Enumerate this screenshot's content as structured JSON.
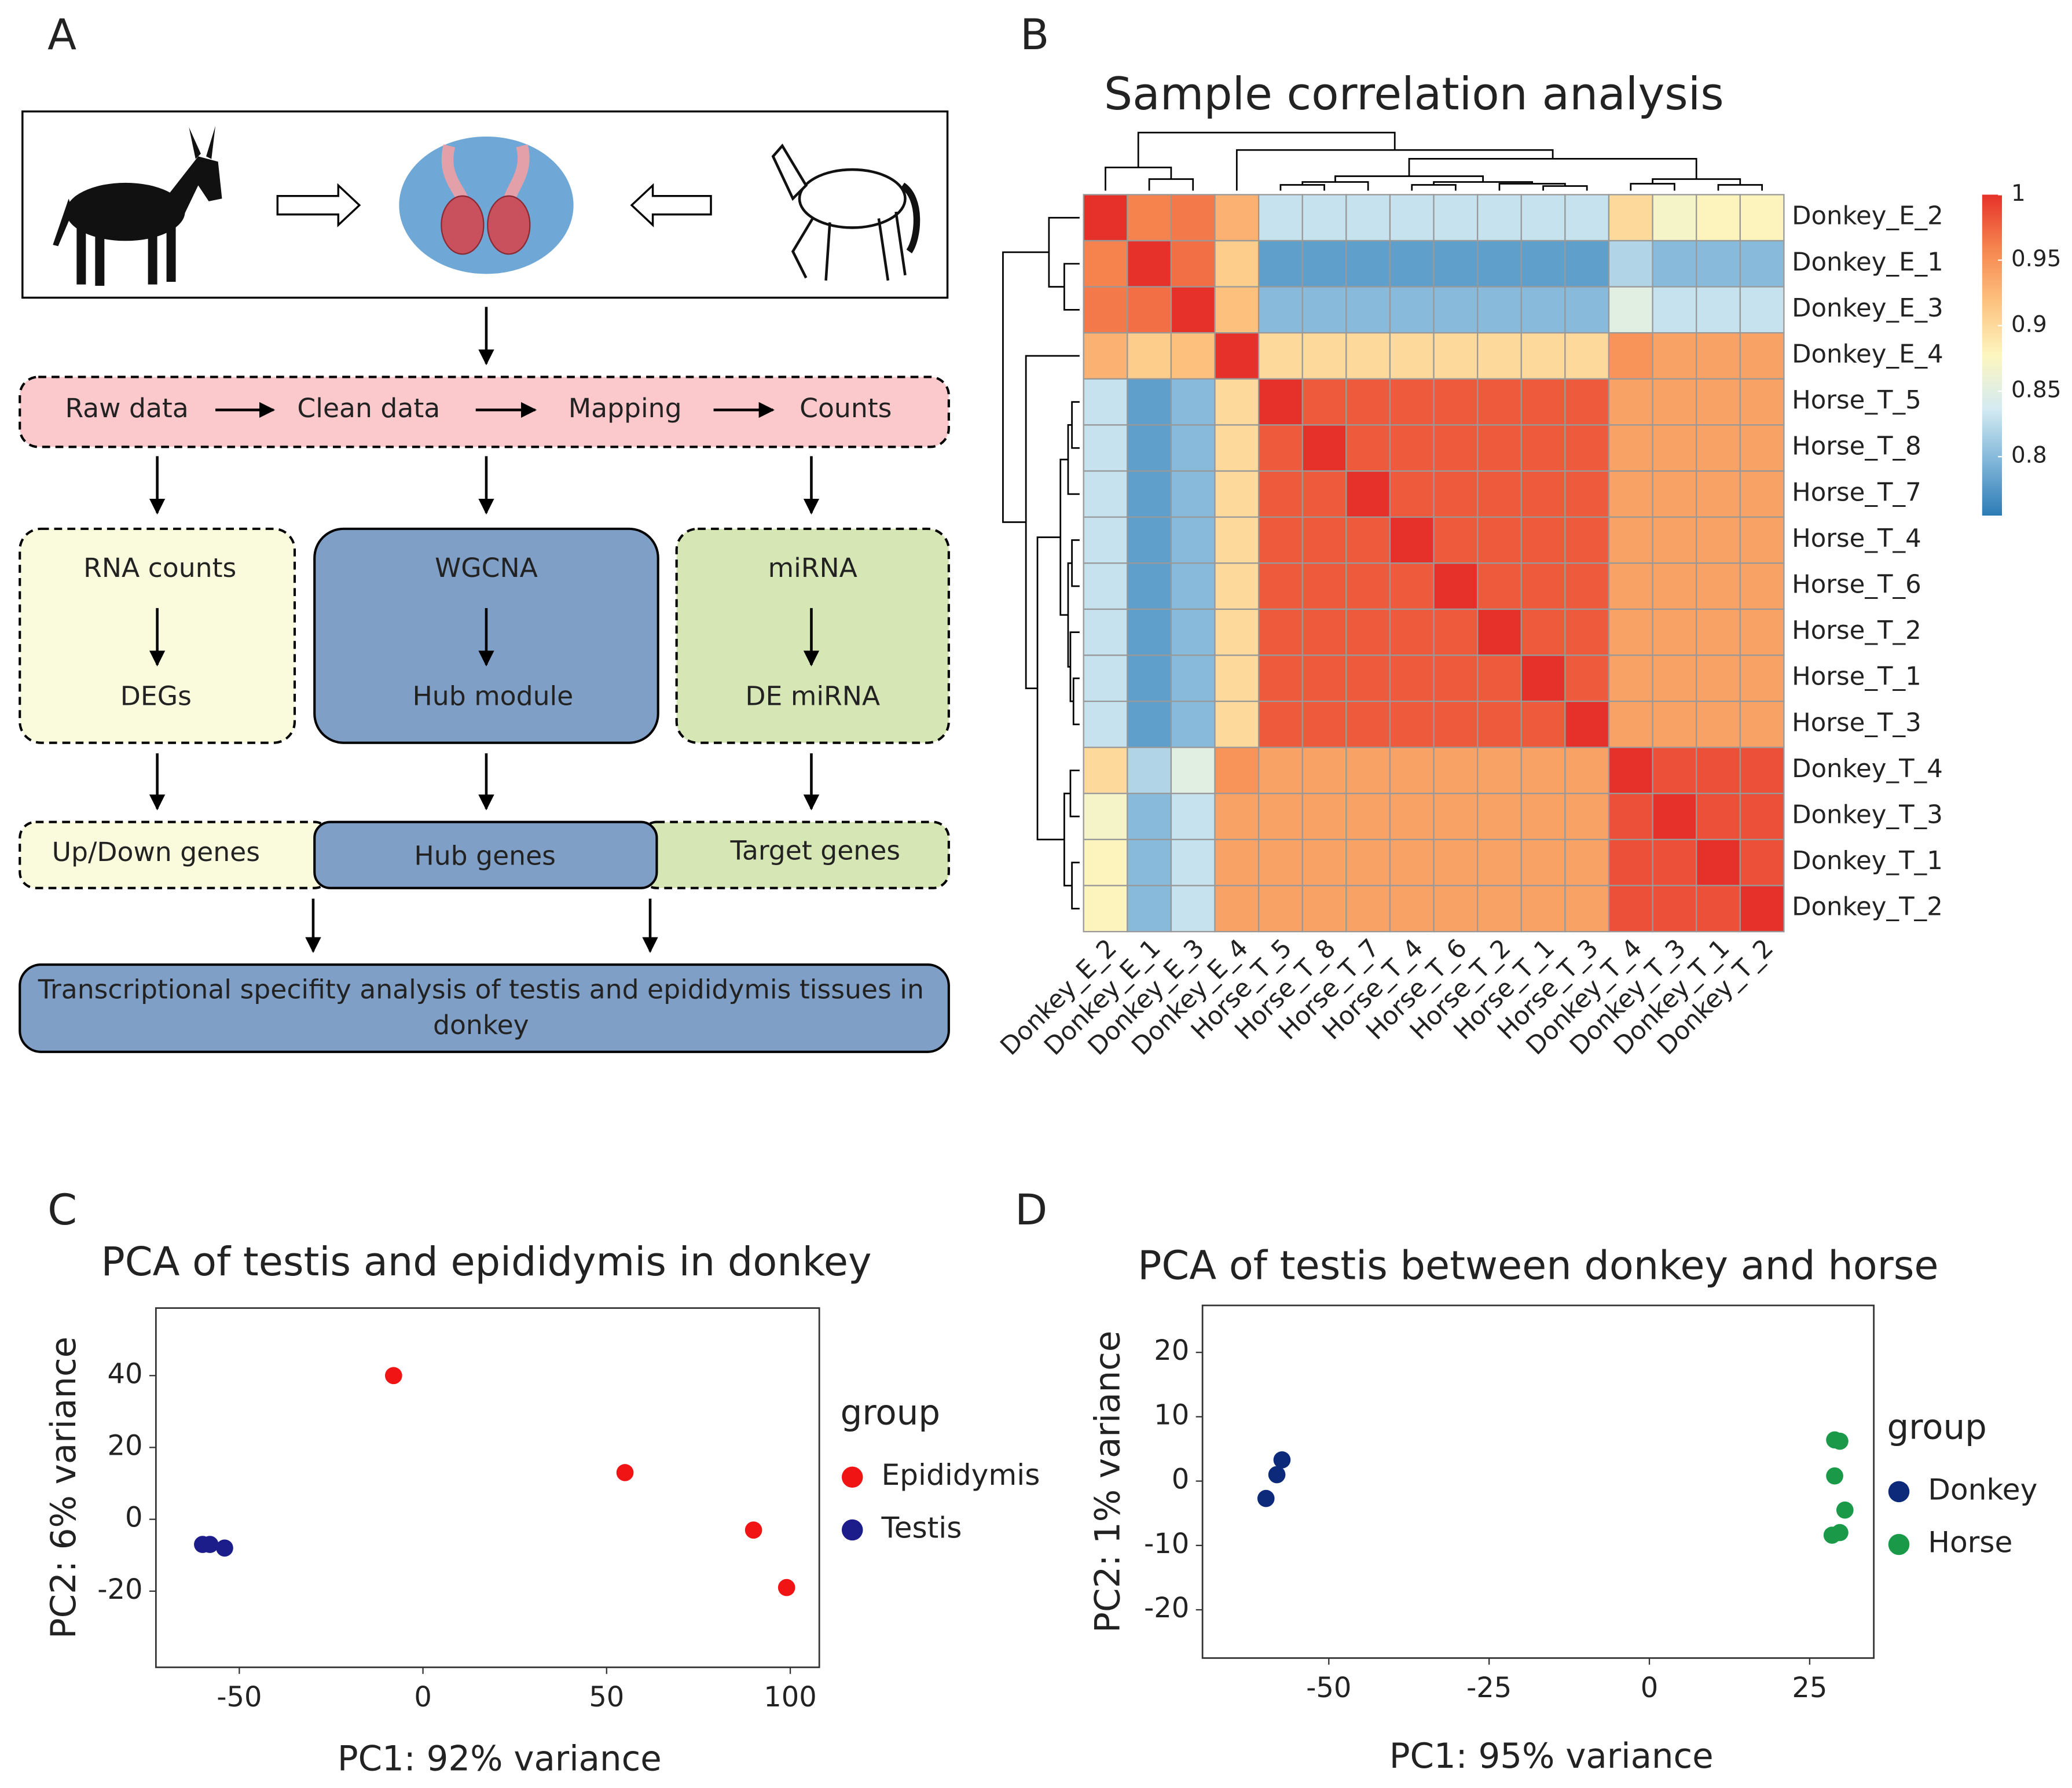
{
  "flowchart": {
    "panel": "A",
    "pipeline": [
      "Raw data",
      "Clean data",
      "Mapping",
      "Counts"
    ],
    "branches": [
      {
        "top": "RNA counts",
        "bottom": "DEGs",
        "result": "Up/Down genes"
      },
      {
        "top": "WGCNA",
        "bottom": "Hub module",
        "result": "Hub genes"
      },
      {
        "top": "miRNA",
        "bottom": "DE miRNA",
        "result": "Target genes"
      }
    ],
    "conclusion": [
      "Transcriptional specifity analysis of testis and epididymis tissues in",
      "donkey"
    ]
  },
  "chart_data": [
    {
      "type": "heatmap",
      "panel": "B",
      "title": "Sample correlation analysis",
      "rows": [
        "Donkey_E_2",
        "Donkey_E_1",
        "Donkey_E_3",
        "Donkey_E_4",
        "Horse_T_5",
        "Horse_T_8",
        "Horse_T_7",
        "Horse_T_4",
        "Horse_T_6",
        "Horse_T_2",
        "Horse_T_1",
        "Horse_T_3",
        "Donkey_T_4",
        "Donkey_T_3",
        "Donkey_T_1",
        "Donkey_T_2"
      ],
      "columns": [
        "Donkey_E_2",
        "Donkey_E_1",
        "Donkey_E_3",
        "Donkey_E_4",
        "Horse_T_5",
        "Horse_T_8",
        "Horse_T_7",
        "Horse_T_4",
        "Horse_T_6",
        "Horse_T_2",
        "Horse_T_1",
        "Horse_T_3",
        "Donkey_T_4",
        "Donkey_T_3",
        "Donkey_T_1",
        "Donkey_T_2"
      ],
      "values": [
        [
          1,
          0.96,
          0.965,
          0.93,
          0.83,
          0.83,
          0.83,
          0.83,
          0.83,
          0.83,
          0.83,
          0.83,
          0.9,
          0.87,
          0.88,
          0.88
        ],
        [
          0.96,
          1,
          0.97,
          0.91,
          0.78,
          0.78,
          0.78,
          0.78,
          0.78,
          0.78,
          0.78,
          0.78,
          0.82,
          0.8,
          0.8,
          0.8
        ],
        [
          0.965,
          0.97,
          1,
          0.92,
          0.8,
          0.8,
          0.8,
          0.8,
          0.8,
          0.8,
          0.8,
          0.8,
          0.85,
          0.83,
          0.83,
          0.83
        ],
        [
          0.93,
          0.91,
          0.92,
          1,
          0.9,
          0.9,
          0.9,
          0.9,
          0.9,
          0.9,
          0.9,
          0.9,
          0.95,
          0.94,
          0.94,
          0.94
        ],
        [
          0.83,
          0.78,
          0.8,
          0.9,
          1,
          0.98,
          0.98,
          0.98,
          0.98,
          0.98,
          0.98,
          0.98,
          0.94,
          0.94,
          0.94,
          0.94
        ],
        [
          0.83,
          0.78,
          0.8,
          0.9,
          0.98,
          1,
          0.98,
          0.98,
          0.98,
          0.98,
          0.98,
          0.98,
          0.94,
          0.94,
          0.94,
          0.94
        ],
        [
          0.83,
          0.78,
          0.8,
          0.9,
          0.98,
          0.98,
          1,
          0.98,
          0.98,
          0.98,
          0.98,
          0.98,
          0.94,
          0.94,
          0.94,
          0.94
        ],
        [
          0.83,
          0.78,
          0.8,
          0.9,
          0.98,
          0.98,
          0.98,
          1,
          0.98,
          0.98,
          0.98,
          0.98,
          0.94,
          0.94,
          0.94,
          0.94
        ],
        [
          0.83,
          0.78,
          0.8,
          0.9,
          0.98,
          0.98,
          0.98,
          0.98,
          1,
          0.98,
          0.98,
          0.98,
          0.94,
          0.94,
          0.94,
          0.94
        ],
        [
          0.83,
          0.78,
          0.8,
          0.9,
          0.98,
          0.98,
          0.98,
          0.98,
          0.98,
          1,
          0.98,
          0.98,
          0.94,
          0.94,
          0.94,
          0.94
        ],
        [
          0.83,
          0.78,
          0.8,
          0.9,
          0.98,
          0.98,
          0.98,
          0.98,
          0.98,
          0.98,
          1,
          0.98,
          0.94,
          0.94,
          0.94,
          0.94
        ],
        [
          0.83,
          0.78,
          0.8,
          0.9,
          0.98,
          0.98,
          0.98,
          0.98,
          0.98,
          0.98,
          0.98,
          1,
          0.94,
          0.94,
          0.94,
          0.94
        ],
        [
          0.9,
          0.82,
          0.85,
          0.95,
          0.94,
          0.94,
          0.94,
          0.94,
          0.94,
          0.94,
          0.94,
          0.94,
          1,
          0.985,
          0.985,
          0.985
        ],
        [
          0.87,
          0.8,
          0.83,
          0.94,
          0.94,
          0.94,
          0.94,
          0.94,
          0.94,
          0.94,
          0.94,
          0.94,
          0.985,
          1,
          0.985,
          0.985
        ],
        [
          0.88,
          0.8,
          0.83,
          0.94,
          0.94,
          0.94,
          0.94,
          0.94,
          0.94,
          0.94,
          0.94,
          0.94,
          0.985,
          0.985,
          1,
          0.985
        ],
        [
          0.88,
          0.8,
          0.83,
          0.94,
          0.94,
          0.94,
          0.94,
          0.94,
          0.94,
          0.94,
          0.94,
          0.94,
          0.985,
          0.985,
          0.985,
          1
        ]
      ],
      "zlim": [
        0.755,
        1
      ],
      "colorbar_ticks": [
        1,
        0.95,
        0.9,
        0.85,
        0.8
      ],
      "colors": [
        "#2c7bb6",
        "#7fb5d8",
        "#d4ebf2",
        "#fdf6c0",
        "#fdc27f",
        "#f6854f",
        "#e6312a"
      ]
    },
    {
      "type": "scatter",
      "panel": "C",
      "title": "PCA of testis and epididymis in donkey",
      "xlabel": "PC1: 92% variance",
      "ylabel": "PC2: 6% variance",
      "legend_title": "group",
      "xlim": [
        -72.7,
        107.9
      ],
      "ylim": [
        -41.2,
        58.8
      ],
      "xticks": [
        -50,
        0,
        50,
        100
      ],
      "yticks": [
        -20,
        0,
        20,
        40
      ],
      "series": [
        {
          "name": "Epididymis",
          "color": "#f01414",
          "x": [
            -8,
            55,
            90,
            99
          ],
          "values": [
            40,
            13,
            -3,
            -19
          ]
        },
        {
          "name": "Testis",
          "color": "#1c1c8a",
          "x": [
            -60,
            -58,
            -54
          ],
          "values": [
            -7,
            -7,
            -8
          ]
        }
      ]
    },
    {
      "type": "scatter",
      "panel": "D",
      "title": "PCA of testis between donkey and horse",
      "xlabel": "PC1: 95% variance",
      "ylabel": "PC2: 1% variance",
      "legend_title": "group",
      "xlim": [
        -69.7,
        35
      ],
      "ylim": [
        -27.5,
        27.3
      ],
      "xticks": [
        -50,
        -25,
        0,
        25
      ],
      "yticks": [
        -20,
        -10,
        0,
        10,
        20
      ],
      "series": [
        {
          "name": "Donkey",
          "color": "#0d2a7a",
          "x": [
            -57.3,
            -58.1,
            -59.8
          ],
          "values": [
            3.3,
            1,
            -2.7
          ]
        },
        {
          "name": "Horse",
          "color": "#1a9a48",
          "x": [
            28.9,
            29.7,
            28.9,
            30.5,
            29.7,
            28.5
          ],
          "values": [
            6.4,
            6.2,
            0.8,
            -4.5,
            -8,
            -8.4
          ]
        }
      ]
    }
  ]
}
